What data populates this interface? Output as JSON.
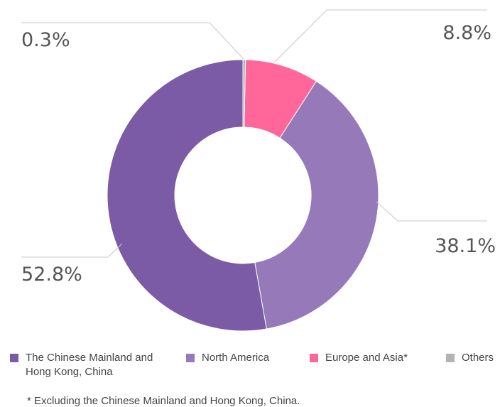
{
  "chart_data": {
    "type": "donut",
    "categories": [
      "The Chinese Mainland and Hong Kong, China",
      "North America",
      "Europe and Asia*",
      "Others"
    ],
    "values": [
      52.8,
      38.1,
      8.8,
      0.3
    ],
    "value_labels": [
      "52.8%",
      "38.1%",
      "8.8%",
      "0.3%"
    ],
    "colors": [
      "#7b5aa6",
      "#9579b9",
      "#ff6699",
      "#b3b3b3"
    ],
    "footnote": "* Excluding the Chinese Mainland and Hong Kong, China."
  }
}
